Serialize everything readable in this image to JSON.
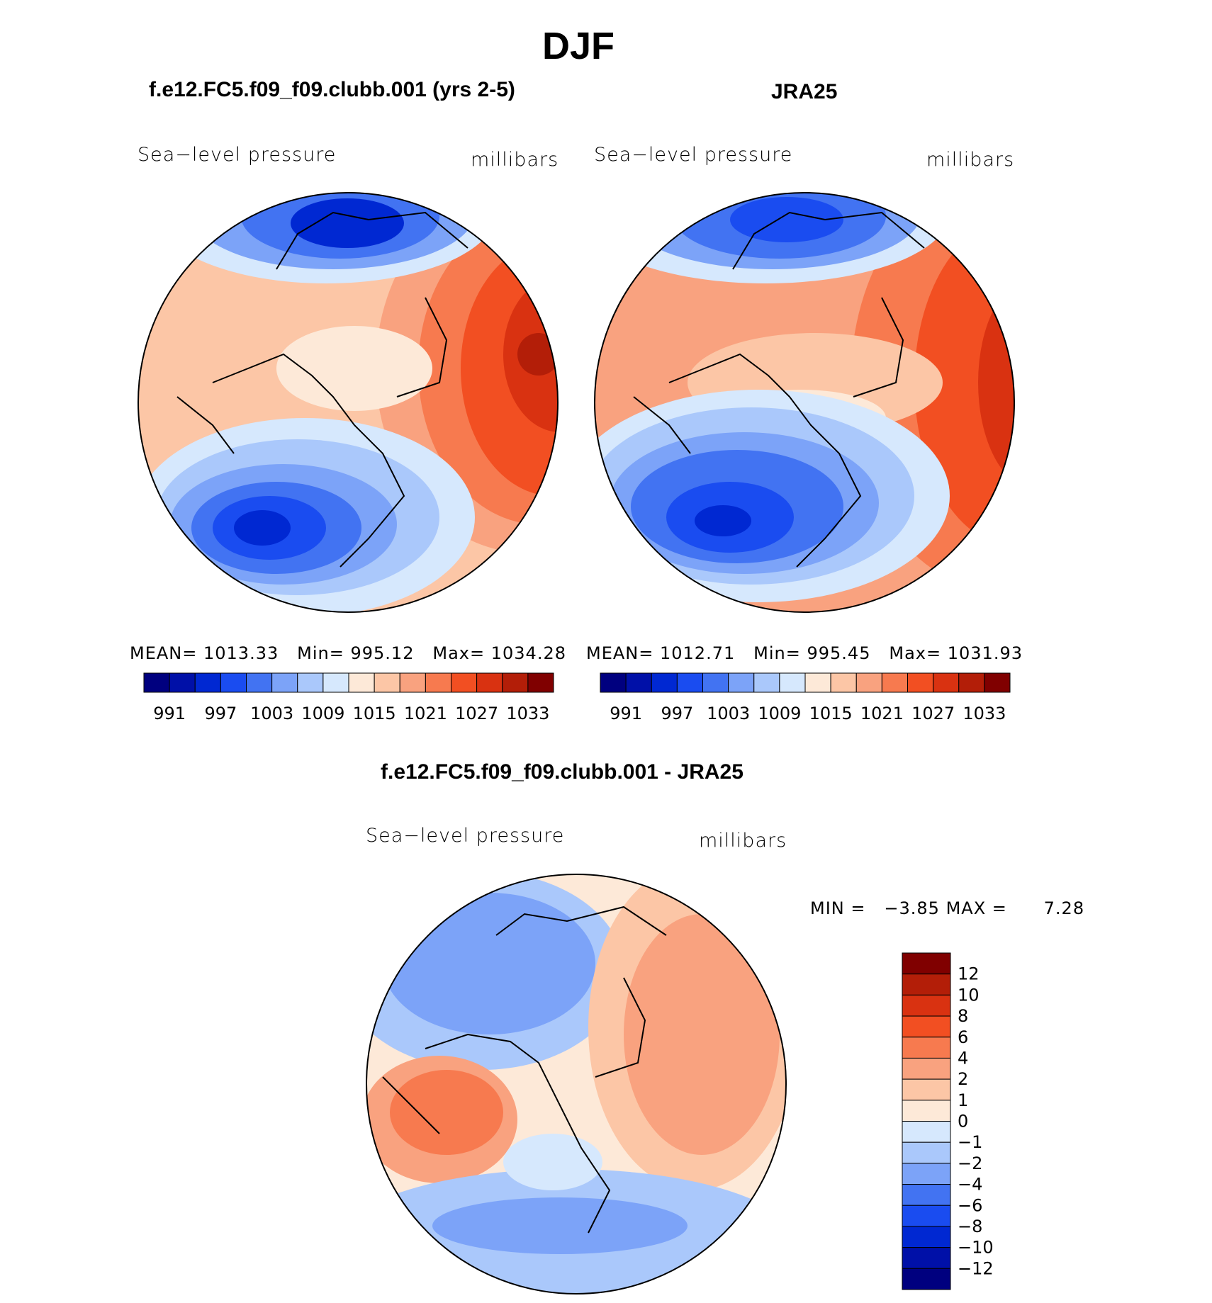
{
  "figure": {
    "season": "DJF",
    "colors": [
      "#00007f",
      "#0010a8",
      "#0028d2",
      "#1a4cf0",
      "#4273f2",
      "#7ca3f8",
      "#aac8fb",
      "#d6e8fd",
      "#fde9d8",
      "#fcc6a6",
      "#f9a27f",
      "#f77a4f",
      "#f24f22",
      "#d93211",
      "#b31e08",
      "#800000"
    ]
  },
  "panels": [
    {
      "id": "model",
      "title": "f.e12.FC5.f09_f09.clubb.001 (yrs 2-5)",
      "variable": "Sea−level pressure",
      "units": "millibars",
      "mean_label": "MEAN=",
      "mean": "1013.33",
      "min_label": "Min=",
      "min": "995.12",
      "max_label": "Max=",
      "max": "1034.28",
      "colorbar_ticks": [
        "991",
        "997",
        "1003",
        "1009",
        "1015",
        "1021",
        "1027",
        "1033"
      ]
    },
    {
      "id": "obs",
      "title": "JRA25",
      "variable": "Sea−level pressure",
      "units": "millibars",
      "mean_label": "MEAN=",
      "mean": "1012.71",
      "min_label": "Min=",
      "min": "995.45",
      "max_label": "Max=",
      "max": "1031.93",
      "colorbar_ticks": [
        "991",
        "997",
        "1003",
        "1009",
        "1015",
        "1021",
        "1027",
        "1033"
      ]
    }
  ],
  "diff": {
    "title": "f.e12.FC5.f09_f09.clubb.001 - JRA25",
    "variable": "Sea−level pressure",
    "units": "millibars",
    "min_label": "MIN =",
    "min": "−3.85",
    "max_label": "MAX =",
    "max": "7.28",
    "colorbar_ticks": [
      "12",
      "10",
      "8",
      "6",
      "4",
      "2",
      "1",
      "0",
      "−1",
      "−2",
      "−4",
      "−6",
      "−8",
      "−10",
      "−12"
    ],
    "colors": [
      "#800000",
      "#b31e08",
      "#d93211",
      "#f24f22",
      "#f77a4f",
      "#f9a27f",
      "#fcc6a6",
      "#fde9d8",
      "#d6e8fd",
      "#aac8fb",
      "#7ca3f8",
      "#4273f2",
      "#1a4cf0",
      "#0028d2",
      "#0010a8",
      "#00007f"
    ]
  }
}
